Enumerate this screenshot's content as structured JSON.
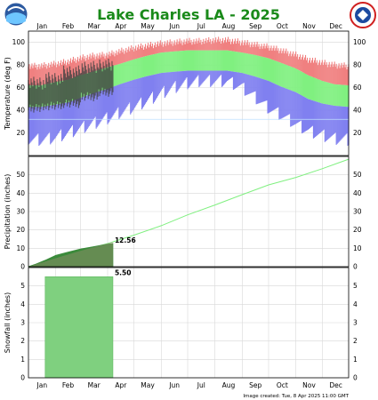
{
  "header": {
    "title": "Lake Charles LA - 2025",
    "left_logo_text": "NOAA",
    "right_logo_text": "NATIONAL WEATHER SERVICE"
  },
  "footer": {
    "created": "Image created: Tue, 8 Apr 2025 11:00 GMT"
  },
  "colors": {
    "record_high": "#f08080",
    "normal_range": "#80f080",
    "record_low": "#8080f0",
    "observed": "#404040",
    "precip_fill": "#3a8a3a",
    "precip_normal_line": "#80f080",
    "snow_fill": "#7fd07f",
    "title_green": "#1a8a1a"
  },
  "chart_data": [
    {
      "type": "area",
      "title": "Lake Charles LA - 2025",
      "xlabel": "",
      "ylabel": "Temperature (deg F)",
      "x_tick_labels": [
        "Jan",
        "Feb",
        "Mar",
        "Apr",
        "May",
        "Jun",
        "Jul",
        "Aug",
        "Sep",
        "Oct",
        "Nov",
        "Dec"
      ],
      "ylim": [
        0,
        110
      ],
      "y_ticks": [
        20,
        40,
        60,
        80,
        100
      ],
      "x_range_days": [
        1,
        365
      ],
      "grid": true,
      "series": [
        {
          "x_day": [
            1,
            15,
            32,
            46,
            60,
            74,
            91,
            105,
            121,
            135,
            152,
            166,
            182,
            196,
            213,
            227,
            244,
            258,
            274,
            288,
            305,
            319,
            335,
            349,
            365
          ],
          "record_high": [
            79,
            79,
            81,
            83,
            86,
            88,
            89,
            92,
            95,
            97,
            99,
            100,
            101,
            101,
            102,
            102,
            100,
            98,
            96,
            93,
            89,
            85,
            82,
            80,
            79
          ],
          "normal_high": [
            62,
            62,
            65,
            67,
            71,
            74,
            78,
            81,
            85,
            88,
            91,
            92,
            93,
            93,
            93,
            93,
            91,
            89,
            86,
            82,
            77,
            71,
            66,
            63,
            62
          ],
          "normal_low": [
            43,
            43,
            45,
            47,
            51,
            55,
            59,
            63,
            67,
            70,
            73,
            74,
            75,
            75,
            75,
            75,
            73,
            70,
            66,
            61,
            56,
            50,
            46,
            44,
            43
          ],
          "record_low": [
            14,
            14,
            16,
            20,
            24,
            28,
            33,
            38,
            43,
            48,
            55,
            60,
            64,
            66,
            66,
            66,
            60,
            52,
            42,
            36,
            28,
            22,
            18,
            15,
            14
          ]
        }
      ],
      "observed_through_day": 97,
      "observed_temperature_ranges": [
        {
          "day_from": 1,
          "day_to": 20,
          "high": 64,
          "low": 42
        },
        {
          "day_from": 21,
          "day_to": 40,
          "high": 68,
          "low": 44
        },
        {
          "day_from": 41,
          "day_to": 60,
          "high": 74,
          "low": 46
        },
        {
          "day_from": 61,
          "day_to": 80,
          "high": 78,
          "low": 52
        },
        {
          "day_from": 81,
          "day_to": 97,
          "high": 80,
          "low": 56
        }
      ],
      "extra_line": {
        "name": "freezing",
        "y": 32,
        "color": "#c0e0ff"
      }
    },
    {
      "type": "area",
      "ylabel": "Precipitation (inches)",
      "ylim": [
        0,
        60
      ],
      "y_ticks": [
        0,
        10,
        20,
        30,
        40,
        50
      ],
      "x_range_days": [
        1,
        365
      ],
      "normal_cumulative": {
        "x_day": [
          1,
          32,
          60,
          91,
          121,
          152,
          182,
          213,
          244,
          274,
          305,
          335,
          365
        ],
        "values": [
          0,
          4.6,
          8.6,
          12.6,
          17.2,
          22.3,
          28.2,
          33.6,
          39.2,
          44.5,
          48.6,
          53.3,
          58.5
        ]
      },
      "observed_cumulative": {
        "x_day": [
          1,
          10,
          20,
          32,
          45,
          60,
          75,
          90,
          97
        ],
        "values": [
          0,
          1.5,
          3.5,
          6.2,
          7.8,
          9.6,
          10.9,
          12.2,
          12.56
        ]
      },
      "label": "12.56"
    },
    {
      "type": "bar",
      "ylabel": "Snowfall (inches)",
      "ylim": [
        0,
        6
      ],
      "y_ticks": [
        0,
        1,
        2,
        3,
        4,
        5
      ],
      "x_range_days": [
        1,
        365
      ],
      "observed_cumulative": {
        "start_day": 20,
        "end_day": 97,
        "value": 5.5
      },
      "label": "5.50"
    }
  ]
}
